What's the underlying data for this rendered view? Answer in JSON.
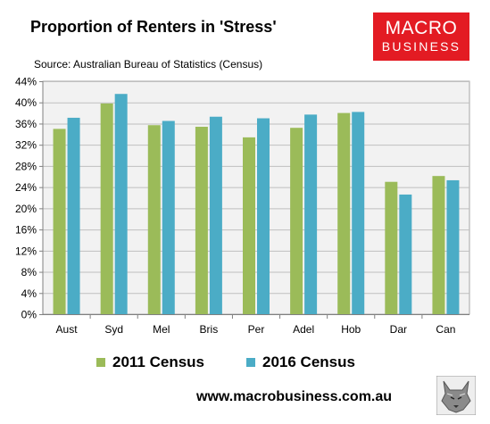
{
  "header": {
    "title": "Proportion of Renters in 'Stress'",
    "subtitle": "Source: Australian Bureau of Statistics (Census)"
  },
  "logo": {
    "line1": "MACRO",
    "line2": "BUSINESS",
    "color": "#e31b23"
  },
  "footer": {
    "url": "www.macrobusiness.com.au"
  },
  "colors": {
    "s2011": "#9bbb59",
    "s2016": "#4bacc6",
    "plot_bg": "#f2f2f2",
    "grid": "#bfbfbf"
  },
  "chart_data": {
    "type": "bar",
    "title": "Proportion of Renters in 'Stress'",
    "subtitle": "Source: Australian Bureau of Statistics (Census)",
    "categories": [
      "Aust",
      "Syd",
      "Mel",
      "Bris",
      "Per",
      "Adel",
      "Hob",
      "Dar",
      "Can"
    ],
    "series": [
      {
        "name": "2011 Census",
        "values": [
          35.0,
          39.8,
          35.7,
          35.4,
          33.4,
          35.2,
          38.0,
          25.0,
          26.1
        ]
      },
      {
        "name": "2016 Census",
        "values": [
          37.1,
          41.6,
          36.5,
          37.3,
          37.0,
          37.7,
          38.2,
          22.6,
          25.3
        ]
      }
    ],
    "ylim": [
      0,
      44
    ],
    "yticks": [
      "0%",
      "4%",
      "8%",
      "12%",
      "16%",
      "20%",
      "24%",
      "28%",
      "32%",
      "36%",
      "40%",
      "44%"
    ],
    "ytick_values": [
      0,
      4,
      8,
      12,
      16,
      20,
      24,
      28,
      32,
      36,
      40,
      44
    ],
    "grid": true,
    "legend": "bottom"
  }
}
